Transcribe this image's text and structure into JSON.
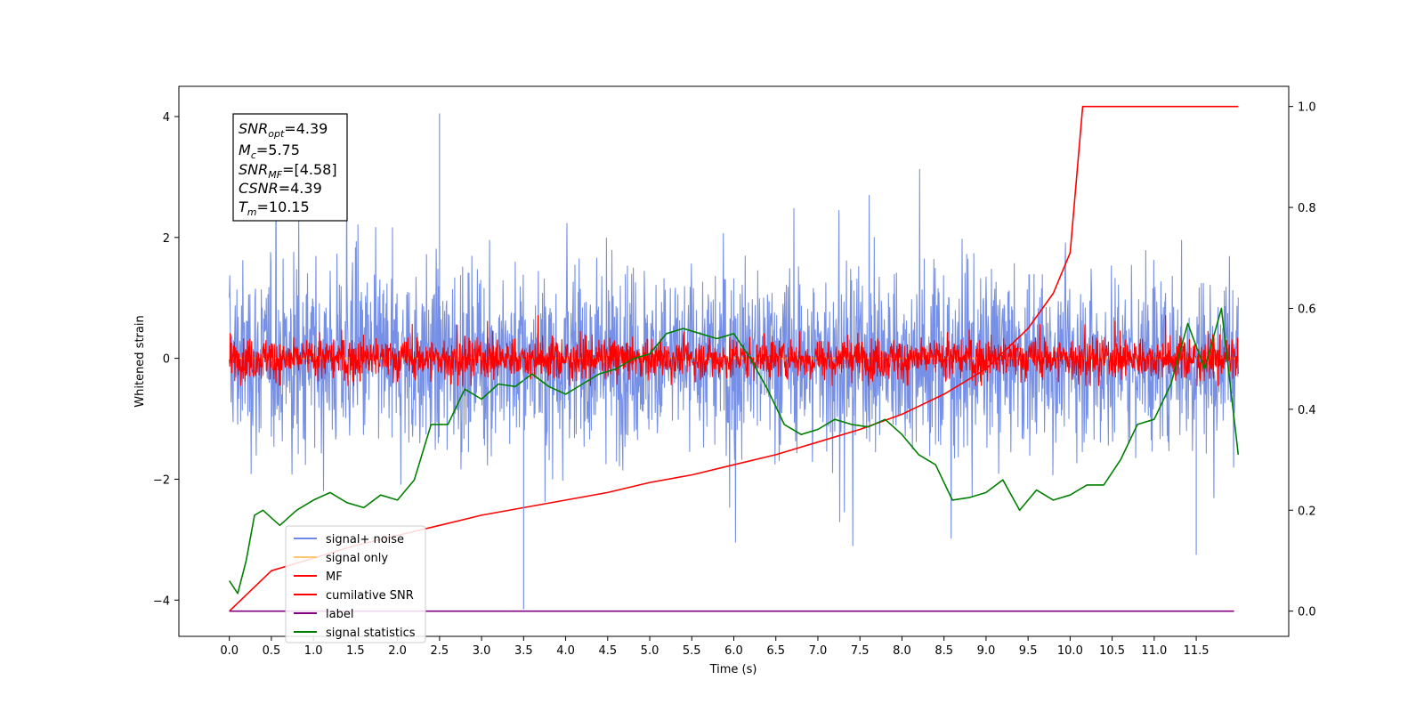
{
  "chart_data": {
    "type": "line",
    "xlabel": "Time (s)",
    "ylabel": "Whitened strain",
    "xlim": [
      -0.6,
      12.6
    ],
    "ylim": [
      -4.6,
      4.5
    ],
    "ylim_right": [
      -0.05,
      1.04
    ],
    "x_ticks": [
      "0.0",
      "0.5",
      "1.0",
      "1.5",
      "2.0",
      "2.5",
      "3.0",
      "3.5",
      "4.0",
      "4.5",
      "5.0",
      "5.5",
      "6.0",
      "6.5",
      "7.0",
      "7.5",
      "8.0",
      "8.5",
      "9.0",
      "9.5",
      "10.0",
      "10.5",
      "11.0",
      "11.5"
    ],
    "y_ticks_left": [
      "4",
      "2",
      "0",
      "−2",
      "−4"
    ],
    "y_ticks_left_values": [
      4,
      2,
      0,
      -2,
      -4
    ],
    "y_ticks_right": [
      "1.0",
      "0.8",
      "0.6",
      "0.4",
      "0.2",
      "0.0"
    ],
    "y_ticks_right_values": [
      1.0,
      0.8,
      0.6,
      0.4,
      0.2,
      0.0
    ],
    "grid": false,
    "legend_position": "lower-left",
    "series": [
      {
        "name": "signal+ noise",
        "color": "#6f8ae6",
        "axis": "left",
        "kind": "noise",
        "x_range": [
          0,
          12
        ],
        "amplitude": 0.75,
        "peaks": [
          4.05,
          -4.15
        ]
      },
      {
        "name": "signal only",
        "color": "#ffc870",
        "axis": "left",
        "kind": "flat",
        "x_range": [
          0,
          12
        ]
      },
      {
        "name": "MF",
        "color": "#ff0000",
        "axis": "left",
        "kind": "noise",
        "x_range": [
          0,
          12
        ],
        "amplitude": 0.17,
        "peaks": [
          1.0,
          -0.45
        ]
      },
      {
        "name": "cumilative SNR",
        "color": "#ff0000",
        "axis": "right",
        "kind": "curve",
        "x": [
          0,
          0.5,
          1.0,
          1.5,
          2.0,
          2.5,
          3.0,
          3.5,
          4.0,
          4.5,
          5.0,
          5.5,
          6.0,
          6.5,
          7.0,
          7.5,
          8.0,
          8.5,
          9.0,
          9.5,
          9.8,
          10.0,
          10.15,
          10.5,
          11.0,
          11.5,
          12.0
        ],
        "y": [
          0.0,
          0.08,
          0.105,
          0.13,
          0.15,
          0.17,
          0.19,
          0.205,
          0.22,
          0.235,
          0.255,
          0.27,
          0.29,
          0.31,
          0.335,
          0.36,
          0.39,
          0.43,
          0.48,
          0.56,
          0.63,
          0.71,
          1.0,
          1.0,
          1.0,
          1.0,
          1.0
        ]
      },
      {
        "name": "label",
        "color": "#800080",
        "axis": "right",
        "kind": "line",
        "x": [
          0,
          11.95
        ],
        "y": [
          0.0,
          0.0
        ]
      },
      {
        "name": "signal statistics",
        "color": "#008000",
        "axis": "right",
        "kind": "line",
        "x": [
          0.0,
          0.1,
          0.2,
          0.3,
          0.4,
          0.5,
          0.6,
          0.7,
          0.8,
          1.0,
          1.2,
          1.4,
          1.6,
          1.8,
          2.0,
          2.2,
          2.4,
          2.6,
          2.8,
          3.0,
          3.2,
          3.4,
          3.6,
          3.8,
          4.0,
          4.2,
          4.4,
          4.6,
          4.8,
          5.0,
          5.2,
          5.4,
          5.6,
          5.8,
          6.0,
          6.2,
          6.4,
          6.6,
          6.8,
          7.0,
          7.2,
          7.4,
          7.6,
          7.8,
          8.0,
          8.2,
          8.4,
          8.6,
          8.8,
          9.0,
          9.2,
          9.4,
          9.6,
          9.8,
          10.0,
          10.2,
          10.4,
          10.6,
          10.8,
          11.0,
          11.2,
          11.4,
          11.6,
          11.8,
          12.0
        ],
        "y": [
          0.06,
          0.035,
          0.1,
          0.19,
          0.2,
          0.185,
          0.17,
          0.185,
          0.2,
          0.22,
          0.235,
          0.215,
          0.205,
          0.23,
          0.22,
          0.26,
          0.37,
          0.37,
          0.44,
          0.42,
          0.45,
          0.445,
          0.47,
          0.445,
          0.43,
          0.45,
          0.47,
          0.48,
          0.5,
          0.51,
          0.55,
          0.56,
          0.55,
          0.54,
          0.55,
          0.5,
          0.44,
          0.37,
          0.35,
          0.36,
          0.38,
          0.37,
          0.365,
          0.38,
          0.35,
          0.31,
          0.29,
          0.22,
          0.225,
          0.235,
          0.26,
          0.2,
          0.24,
          0.22,
          0.23,
          0.25,
          0.25,
          0.3,
          0.37,
          0.38,
          0.45,
          0.57,
          0.48,
          0.6,
          0.31
        ]
      }
    ]
  },
  "annotation": {
    "snr_opt": {
      "base": "SNR",
      "sub": "opt",
      "value": "=4.39"
    },
    "mc": {
      "base": "M",
      "sub": "c",
      "value": "=5.75"
    },
    "snr_mf": {
      "base": "SNR",
      "sub": "MF",
      "value": "=[4.58]"
    },
    "csnr": {
      "base": "CSNR",
      "sub": "",
      "value": "=4.39"
    },
    "tm": {
      "base": "T",
      "sub": "m",
      "value": "=10.15"
    }
  }
}
